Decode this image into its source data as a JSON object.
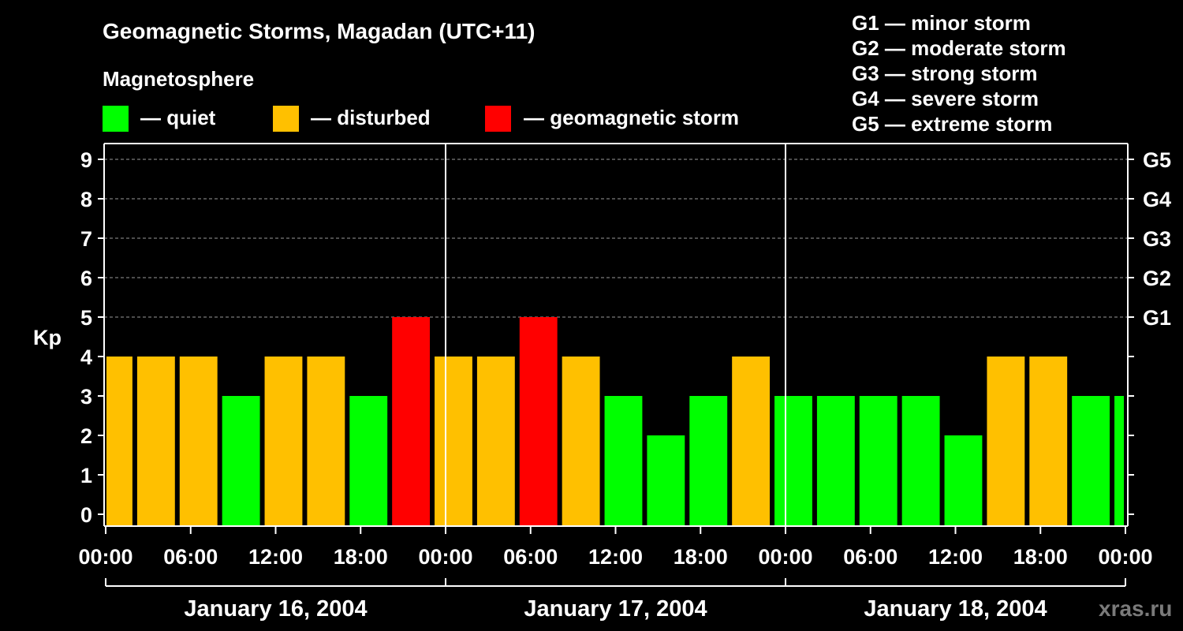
{
  "chart_data": {
    "type": "bar",
    "title": "Geomagnetic Storms, Magadan (UTC+11)",
    "ylabel": "Kp",
    "ylim": [
      0,
      9
    ],
    "yticks": [
      0,
      1,
      2,
      3,
      4,
      5,
      6,
      7,
      8,
      9
    ],
    "right_axis": [
      {
        "label": "G1",
        "kp": 5
      },
      {
        "label": "G2",
        "kp": 6
      },
      {
        "label": "G3",
        "kp": 7
      },
      {
        "label": "G4",
        "kp": 8
      },
      {
        "label": "G5",
        "kp": 9
      }
    ],
    "x_range_hours": [
      0,
      72
    ],
    "xticks": [
      {
        "hour": 0,
        "label": "00:00"
      },
      {
        "hour": 6,
        "label": "06:00"
      },
      {
        "hour": 12,
        "label": "12:00"
      },
      {
        "hour": 18,
        "label": "18:00"
      },
      {
        "hour": 24,
        "label": "00:00"
      },
      {
        "hour": 30,
        "label": "06:00"
      },
      {
        "hour": 36,
        "label": "12:00"
      },
      {
        "hour": 42,
        "label": "18:00"
      },
      {
        "hour": 48,
        "label": "00:00"
      },
      {
        "hour": 54,
        "label": "06:00"
      },
      {
        "hour": 60,
        "label": "12:00"
      },
      {
        "hour": 66,
        "label": "18:00"
      },
      {
        "hour": 72,
        "label": "00:00"
      }
    ],
    "days": [
      {
        "label": "January 16, 2004",
        "start_hour": 0,
        "end_hour": 24
      },
      {
        "label": "January 17, 2004",
        "start_hour": 24,
        "end_hour": 48
      },
      {
        "label": "January 18, 2004",
        "start_hour": 48,
        "end_hour": 72
      }
    ],
    "bars": [
      {
        "start_hour": 0,
        "end_hour": 2,
        "kp": 4,
        "status": "disturbed"
      },
      {
        "start_hour": 2,
        "end_hour": 5,
        "kp": 4,
        "status": "disturbed"
      },
      {
        "start_hour": 5,
        "end_hour": 8,
        "kp": 4,
        "status": "disturbed"
      },
      {
        "start_hour": 8,
        "end_hour": 11,
        "kp": 3,
        "status": "quiet"
      },
      {
        "start_hour": 11,
        "end_hour": 14,
        "kp": 4,
        "status": "disturbed"
      },
      {
        "start_hour": 14,
        "end_hour": 17,
        "kp": 4,
        "status": "disturbed"
      },
      {
        "start_hour": 17,
        "end_hour": 20,
        "kp": 3,
        "status": "quiet"
      },
      {
        "start_hour": 20,
        "end_hour": 23,
        "kp": 5,
        "status": "storm"
      },
      {
        "start_hour": 23,
        "end_hour": 26,
        "kp": 4,
        "status": "disturbed"
      },
      {
        "start_hour": 26,
        "end_hour": 29,
        "kp": 4,
        "status": "disturbed"
      },
      {
        "start_hour": 29,
        "end_hour": 32,
        "kp": 5,
        "status": "storm"
      },
      {
        "start_hour": 32,
        "end_hour": 35,
        "kp": 4,
        "status": "disturbed"
      },
      {
        "start_hour": 35,
        "end_hour": 38,
        "kp": 3,
        "status": "quiet"
      },
      {
        "start_hour": 38,
        "end_hour": 41,
        "kp": 2,
        "status": "quiet"
      },
      {
        "start_hour": 41,
        "end_hour": 44,
        "kp": 3,
        "status": "quiet"
      },
      {
        "start_hour": 44,
        "end_hour": 47,
        "kp": 4,
        "status": "disturbed"
      },
      {
        "start_hour": 47,
        "end_hour": 50,
        "kp": 3,
        "status": "quiet"
      },
      {
        "start_hour": 50,
        "end_hour": 53,
        "kp": 3,
        "status": "quiet"
      },
      {
        "start_hour": 53,
        "end_hour": 56,
        "kp": 3,
        "status": "quiet"
      },
      {
        "start_hour": 56,
        "end_hour": 59,
        "kp": 3,
        "status": "quiet"
      },
      {
        "start_hour": 59,
        "end_hour": 62,
        "kp": 2,
        "status": "quiet"
      },
      {
        "start_hour": 62,
        "end_hour": 65,
        "kp": 4,
        "status": "disturbed"
      },
      {
        "start_hour": 65,
        "end_hour": 68,
        "kp": 4,
        "status": "disturbed"
      },
      {
        "start_hour": 68,
        "end_hour": 71,
        "kp": 3,
        "status": "quiet"
      },
      {
        "start_hour": 71,
        "end_hour": 72,
        "kp": 3,
        "status": "quiet"
      }
    ],
    "colors": {
      "quiet": "#00ff00",
      "disturbed": "#ffc000",
      "storm": "#ff0000",
      "background": "#000000",
      "axis": "#ffffff",
      "grid": "#9a9a9a"
    },
    "grid": true
  },
  "legend": {
    "section_title": "Magnetosphere",
    "items": [
      {
        "key": "quiet",
        "label": "— quiet"
      },
      {
        "key": "disturbed",
        "label": "— disturbed"
      },
      {
        "key": "storm",
        "label": "— geomagnetic storm"
      }
    ],
    "scale": [
      "G1 — minor storm",
      "G2 — moderate storm",
      "G3 — strong storm",
      "G4 — severe storm",
      "G5 — extreme storm"
    ]
  },
  "brand": "xras.ru"
}
